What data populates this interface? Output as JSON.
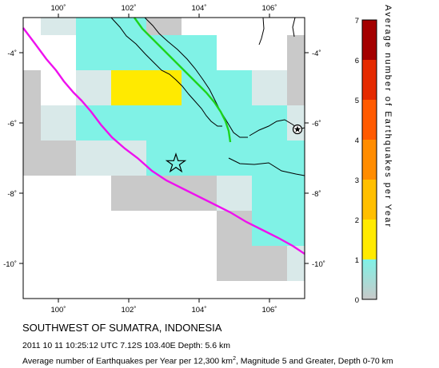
{
  "map": {
    "lon_ticks": [
      "100˚",
      "102˚",
      "104˚",
      "106˚"
    ],
    "lat_ticks": [
      "-4˚",
      "-6˚",
      "-8˚",
      "-10˚"
    ],
    "colors": {
      "bin_0_1_gray": "#c9c9c9",
      "bin_0_1_light": "#d9e9e9",
      "bin_1_cyan": "#80f2e6",
      "bin_yellow": "#ffea00",
      "coast": "#000000",
      "trench": "#ee11ee",
      "fault": "#1dd41d"
    },
    "epicenter_icon": "star-icon",
    "volcano_icon": "volcano-star-icon"
  },
  "legend": {
    "title": "Average number of Earthquakes per Year",
    "ticks": [
      "0",
      "1",
      "2",
      "3",
      "4",
      "5",
      "6",
      "7"
    ],
    "scale_colors": [
      "#c9c9c9",
      "#80f2e6",
      "#ffea00",
      "#ffb000",
      "#ff7a00",
      "#ff3a00",
      "#e11a00",
      "#a40000"
    ]
  },
  "caption": {
    "region": "SOUTHWEST OF SUMATRA, INDONESIA",
    "event": "2011 10 11 10:25:12 UTC 7.12S 103.40E Depth: 5.6 km",
    "desc_before_sup": "Average number of Earthquakes per Year per 12,300 km",
    "desc_sup": "2",
    "desc_after_sup": ", Magnitude 5 and Greater, Depth 0-70 km"
  }
}
